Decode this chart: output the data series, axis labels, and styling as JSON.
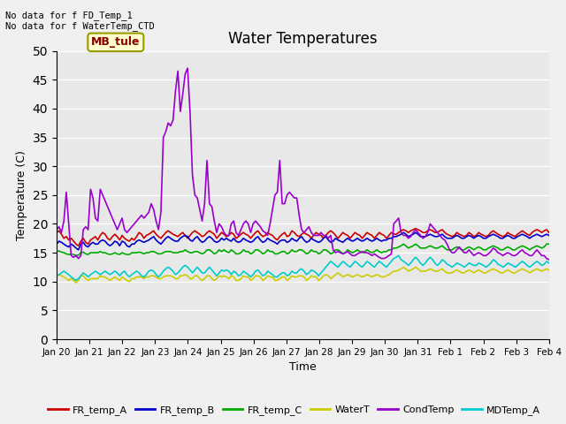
{
  "title": "Water Temperatures",
  "xlabel": "Time",
  "ylabel": "Temperature (C)",
  "ylim": [
    0,
    50
  ],
  "fig_bg": "#f0f0f0",
  "ax_bg": "#e8e8e8",
  "annotations": [
    "No data for f FD_Temp_1",
    "No data for f WaterTemp_CTD"
  ],
  "mb_tule_label": "MB_tule",
  "xtick_labels": [
    "Jan 20",
    "Jan 21",
    "Jan 22",
    "Jan 23",
    "Jan 24",
    "Jan 25",
    "Jan 26",
    "Jan 27",
    "Jan 28",
    "Jan 29",
    "Jan 30",
    "Jan 31",
    "Feb 1",
    "Feb 2",
    "Feb 3",
    "Feb 4"
  ],
  "series_names": [
    "FR_temp_A",
    "FR_temp_B",
    "FR_temp_C",
    "WaterT",
    "CondTemp",
    "MDTemp_A"
  ],
  "series_colors": [
    "#cc0000",
    "#0000cc",
    "#00aa00",
    "#cccc00",
    "#9900cc",
    "#00cccc"
  ],
  "series_lw": [
    1.2,
    1.2,
    1.2,
    1.2,
    1.2,
    1.2
  ],
  "FR_temp_A": [
    18.5,
    18.8,
    18.2,
    17.5,
    17.8,
    17.2,
    17.5,
    17.0,
    16.5,
    16.2,
    17.0,
    17.5,
    16.8,
    16.5,
    17.2,
    17.5,
    17.8,
    17.2,
    18.0,
    18.5,
    18.2,
    17.5,
    17.2,
    17.8,
    18.2,
    17.8,
    17.2,
    18.0,
    17.5,
    17.2,
    17.0,
    17.5,
    17.2,
    17.8,
    18.5,
    18.2,
    17.5,
    18.0,
    18.2,
    18.5,
    18.8,
    18.2,
    17.8,
    17.5,
    18.0,
    18.5,
    18.8,
    18.5,
    18.2,
    18.0,
    17.8,
    18.2,
    18.5,
    18.0,
    17.5,
    18.0,
    18.5,
    18.8,
    18.5,
    18.2,
    17.8,
    18.0,
    18.5,
    18.8,
    18.5,
    18.2,
    17.5,
    18.0,
    18.5,
    18.2,
    17.8,
    18.0,
    18.5,
    18.2,
    17.5,
    17.8,
    18.2,
    18.5,
    18.2,
    18.0,
    17.5,
    18.0,
    18.5,
    18.8,
    18.2,
    17.8,
    18.0,
    18.5,
    18.2,
    18.0,
    17.5,
    17.2,
    17.8,
    18.2,
    18.5,
    17.8,
    18.0,
    18.8,
    18.5,
    18.0,
    17.8,
    18.2,
    18.5,
    18.2,
    18.0,
    17.5,
    18.0,
    18.5,
    18.2,
    18.0,
    17.5,
    18.0,
    18.5,
    18.8,
    18.5,
    18.0,
    17.5,
    18.0,
    18.5,
    18.2,
    18.0,
    17.5,
    18.0,
    18.5,
    18.2,
    18.0,
    17.5,
    18.0,
    18.5,
    18.2,
    18.0,
    17.5,
    18.0,
    18.5,
    18.2,
    18.0,
    17.5,
    18.0,
    18.5,
    18.2,
    18.2,
    18.5,
    18.8,
    19.0,
    18.8,
    18.5,
    18.8,
    19.0,
    19.2,
    19.0,
    18.8,
    18.5,
    18.5,
    18.8,
    19.0,
    18.8,
    18.5,
    18.5,
    18.8,
    19.0,
    18.5,
    18.2,
    18.0,
    17.8,
    18.0,
    18.5,
    18.2,
    18.0,
    17.8,
    18.0,
    18.5,
    18.2,
    17.8,
    18.0,
    18.5,
    18.2,
    18.0,
    17.8,
    18.0,
    18.5,
    18.8,
    18.5,
    18.2,
    18.0,
    17.8,
    18.0,
    18.5,
    18.2,
    18.0,
    17.8,
    18.2,
    18.5,
    18.8,
    18.5,
    18.2,
    18.0,
    18.5,
    18.8,
    19.0,
    18.8,
    18.5,
    18.8,
    19.0,
    18.5
  ],
  "FR_temp_B": [
    16.5,
    17.0,
    16.8,
    16.5,
    16.2,
    16.0,
    16.5,
    16.2,
    15.8,
    15.5,
    16.5,
    16.8,
    16.2,
    16.0,
    16.5,
    16.8,
    16.5,
    16.5,
    17.0,
    17.2,
    17.0,
    16.5,
    16.2,
    16.5,
    17.0,
    16.8,
    16.2,
    17.0,
    16.8,
    16.2,
    16.0,
    16.5,
    16.5,
    17.0,
    17.2,
    17.0,
    16.8,
    17.0,
    17.2,
    17.5,
    17.8,
    17.2,
    16.8,
    16.5,
    17.0,
    17.5,
    17.8,
    17.5,
    17.2,
    17.0,
    17.0,
    17.5,
    17.8,
    18.0,
    17.8,
    17.2,
    17.0,
    17.5,
    17.8,
    17.2,
    16.8,
    17.0,
    17.5,
    17.8,
    17.5,
    17.0,
    16.8,
    17.0,
    17.5,
    17.2,
    17.5,
    17.2,
    17.0,
    17.5,
    17.0,
    16.8,
    17.0,
    17.5,
    17.2,
    17.0,
    16.8,
    17.0,
    17.5,
    17.8,
    17.2,
    16.8,
    17.0,
    17.5,
    17.2,
    17.0,
    16.8,
    16.5,
    17.0,
    17.2,
    17.2,
    16.8,
    17.0,
    17.5,
    17.2,
    17.0,
    17.5,
    17.8,
    17.2,
    16.8,
    17.0,
    17.5,
    17.2,
    17.0,
    16.8,
    17.0,
    17.5,
    17.8,
    17.2,
    16.8,
    17.0,
    17.5,
    17.2,
    17.0,
    16.8,
    17.2,
    17.5,
    17.2,
    17.0,
    17.2,
    17.5,
    17.2,
    17.0,
    17.2,
    17.5,
    17.2,
    17.0,
    17.2,
    17.5,
    17.2,
    17.0,
    17.2,
    17.2,
    17.5,
    17.5,
    17.8,
    17.8,
    18.0,
    18.2,
    18.5,
    18.2,
    17.8,
    18.0,
    18.2,
    18.5,
    18.2,
    17.8,
    17.8,
    17.8,
    18.0,
    18.2,
    18.0,
    17.8,
    17.8,
    18.0,
    18.2,
    17.8,
    17.5,
    17.5,
    17.5,
    17.8,
    18.0,
    17.8,
    17.5,
    17.5,
    17.8,
    18.0,
    17.8,
    17.5,
    17.8,
    18.0,
    17.8,
    17.5,
    17.5,
    17.8,
    18.0,
    18.2,
    18.0,
    17.8,
    17.5,
    17.5,
    17.8,
    18.0,
    17.8,
    17.5,
    17.5,
    17.8,
    18.0,
    18.2,
    18.0,
    17.8,
    17.5,
    17.8,
    18.0,
    18.2,
    18.0,
    17.8,
    18.0,
    18.2,
    18.0
  ],
  "FR_temp_C": [
    15.2,
    15.3,
    15.1,
    15.0,
    14.8,
    14.7,
    14.8,
    14.7,
    14.5,
    14.6,
    15.0,
    15.1,
    14.8,
    14.7,
    15.0,
    15.0,
    15.0,
    15.0,
    15.2,
    15.0,
    15.0,
    14.8,
    14.7,
    14.8,
    15.0,
    14.8,
    14.7,
    15.0,
    14.8,
    14.7,
    14.7,
    15.0,
    15.0,
    15.0,
    15.1,
    15.0,
    14.8,
    15.0,
    15.0,
    15.2,
    15.2,
    15.0,
    14.8,
    14.8,
    15.0,
    15.2,
    15.2,
    15.2,
    15.0,
    15.0,
    15.0,
    15.2,
    15.2,
    15.5,
    15.2,
    15.0,
    15.0,
    15.2,
    15.2,
    15.0,
    14.8,
    15.0,
    15.5,
    15.5,
    15.2,
    14.8,
    15.0,
    15.5,
    15.2,
    15.5,
    15.2,
    15.0,
    15.5,
    15.2,
    14.8,
    14.8,
    15.0,
    15.5,
    15.2,
    15.2,
    14.8,
    15.0,
    15.5,
    15.5,
    15.2,
    14.8,
    15.0,
    15.5,
    15.2,
    15.2,
    14.8,
    14.8,
    15.0,
    15.2,
    15.2,
    14.8,
    15.0,
    15.5,
    15.2,
    15.2,
    15.5,
    15.5,
    15.2,
    14.8,
    15.0,
    15.5,
    15.2,
    15.2,
    14.8,
    15.0,
    15.5,
    15.5,
    15.2,
    14.8,
    15.0,
    15.5,
    15.5,
    15.2,
    14.8,
    15.0,
    15.5,
    15.2,
    15.0,
    15.2,
    15.5,
    15.2,
    15.0,
    15.2,
    15.5,
    15.2,
    15.0,
    15.2,
    15.5,
    15.2,
    15.0,
    15.2,
    15.2,
    15.5,
    15.5,
    15.8,
    15.8,
    16.0,
    16.2,
    16.5,
    16.2,
    15.8,
    16.0,
    16.2,
    16.5,
    16.2,
    15.8,
    15.8,
    15.8,
    16.0,
    16.2,
    16.0,
    15.8,
    15.8,
    16.0,
    16.2,
    15.8,
    15.5,
    15.5,
    15.5,
    15.8,
    16.0,
    15.8,
    15.5,
    15.5,
    15.8,
    16.0,
    15.8,
    15.5,
    15.8,
    16.0,
    15.8,
    15.5,
    15.5,
    15.8,
    16.0,
    16.2,
    16.0,
    15.8,
    15.5,
    15.5,
    15.8,
    16.0,
    15.8,
    15.5,
    15.5,
    15.8,
    16.0,
    16.2,
    16.0,
    15.8,
    15.5,
    15.8,
    16.0,
    16.2,
    16.0,
    15.8,
    16.0,
    16.5,
    16.5
  ],
  "WaterT": [
    11.0,
    11.2,
    11.0,
    10.8,
    10.5,
    10.2,
    10.5,
    10.2,
    9.8,
    10.2,
    11.0,
    11.0,
    10.5,
    10.2,
    10.5,
    10.5,
    10.5,
    10.5,
    11.0,
    10.8,
    10.8,
    10.5,
    10.2,
    10.5,
    10.8,
    10.5,
    10.2,
    10.8,
    10.5,
    10.2,
    10.0,
    10.5,
    10.5,
    10.8,
    10.8,
    10.8,
    10.5,
    10.8,
    10.8,
    11.0,
    11.0,
    10.8,
    10.5,
    10.5,
    10.8,
    11.0,
    11.0,
    11.0,
    10.8,
    10.5,
    10.5,
    11.0,
    11.0,
    11.2,
    11.0,
    10.5,
    10.5,
    11.0,
    11.0,
    10.5,
    10.2,
    10.5,
    11.0,
    11.0,
    10.5,
    10.2,
    10.5,
    11.0,
    10.8,
    11.0,
    10.8,
    10.5,
    11.0,
    10.8,
    10.2,
    10.2,
    10.5,
    11.0,
    10.8,
    10.8,
    10.2,
    10.5,
    11.0,
    11.0,
    10.8,
    10.2,
    10.5,
    11.0,
    10.8,
    10.8,
    10.2,
    10.2,
    10.5,
    10.8,
    10.8,
    10.2,
    10.5,
    11.0,
    10.8,
    10.8,
    11.0,
    11.0,
    10.8,
    10.2,
    10.5,
    11.0,
    10.8,
    10.8,
    10.2,
    10.5,
    11.0,
    11.2,
    11.0,
    10.5,
    10.8,
    11.2,
    11.5,
    11.2,
    10.8,
    11.0,
    11.2,
    11.0,
    10.8,
    11.0,
    11.2,
    11.0,
    10.8,
    11.0,
    11.2,
    11.0,
    10.8,
    11.0,
    11.2,
    11.0,
    10.8,
    10.8,
    11.0,
    11.2,
    11.5,
    11.8,
    11.8,
    12.0,
    12.2,
    12.5,
    12.2,
    11.8,
    12.0,
    12.2,
    12.5,
    12.2,
    11.8,
    11.8,
    11.8,
    12.0,
    12.2,
    12.0,
    11.8,
    11.8,
    12.0,
    12.2,
    11.8,
    11.5,
    11.5,
    11.5,
    11.8,
    12.0,
    11.8,
    11.5,
    11.5,
    11.8,
    12.0,
    11.8,
    11.5,
    11.8,
    12.0,
    11.8,
    11.5,
    11.5,
    11.8,
    12.0,
    12.2,
    12.0,
    11.8,
    11.5,
    11.5,
    11.8,
    12.0,
    11.8,
    11.5,
    11.5,
    11.8,
    12.0,
    12.2,
    12.0,
    11.8,
    11.5,
    11.8,
    12.0,
    12.2,
    12.0,
    11.8,
    12.0,
    12.2,
    12.0
  ],
  "CondTemp": [
    19.0,
    19.5,
    18.5,
    20.5,
    25.5,
    20.0,
    14.5,
    14.2,
    14.5,
    14.0,
    14.5,
    19.0,
    19.5,
    19.0,
    26.0,
    24.5,
    21.0,
    20.5,
    26.0,
    25.0,
    24.0,
    23.0,
    22.0,
    21.0,
    20.0,
    19.0,
    20.0,
    21.0,
    19.0,
    18.5,
    19.0,
    19.5,
    20.0,
    20.5,
    21.0,
    21.5,
    21.0,
    21.5,
    22.0,
    23.5,
    22.5,
    20.5,
    19.0,
    22.0,
    35.0,
    36.0,
    37.5,
    37.0,
    38.0,
    43.0,
    46.5,
    39.5,
    42.5,
    46.0,
    47.0,
    39.5,
    28.5,
    25.0,
    24.5,
    22.5,
    20.5,
    23.5,
    31.0,
    23.5,
    23.0,
    20.5,
    18.5,
    20.0,
    19.5,
    18.5,
    18.0,
    18.0,
    20.0,
    20.5,
    18.5,
    18.0,
    19.0,
    20.0,
    20.5,
    20.0,
    18.5,
    20.0,
    20.5,
    20.0,
    19.5,
    18.8,
    18.5,
    18.0,
    20.0,
    22.5,
    25.0,
    25.5,
    31.0,
    23.5,
    23.5,
    25.0,
    25.5,
    25.0,
    24.5,
    24.5,
    21.5,
    19.0,
    18.5,
    19.0,
    19.5,
    18.5,
    18.0,
    18.0,
    18.0,
    18.5,
    18.0,
    18.0,
    17.5,
    18.0,
    15.5,
    15.0,
    15.2,
    15.0,
    14.8,
    15.0,
    15.2,
    14.8,
    14.5,
    14.5,
    14.8,
    15.0,
    15.2,
    15.0,
    15.0,
    14.8,
    14.5,
    14.8,
    14.5,
    14.2,
    14.0,
    14.0,
    14.2,
    14.5,
    14.8,
    20.0,
    20.5,
    21.0,
    18.5,
    18.0,
    18.0,
    17.5,
    17.8,
    18.5,
    19.0,
    18.5,
    18.0,
    17.5,
    17.8,
    18.5,
    20.0,
    19.5,
    19.0,
    18.5,
    18.0,
    17.5,
    17.2,
    16.5,
    15.5,
    15.0,
    15.0,
    15.5,
    16.0,
    15.5,
    15.0,
    15.0,
    15.5,
    15.0,
    14.5,
    14.8,
    15.0,
    14.8,
    14.5,
    14.5,
    14.8,
    15.2,
    15.8,
    15.5,
    15.0,
    14.8,
    14.5,
    14.8,
    15.0,
    14.8,
    14.5,
    14.5,
    14.8,
    15.2,
    15.5,
    15.0,
    14.8,
    14.5,
    14.5,
    15.0,
    15.5,
    15.0,
    14.5,
    14.5,
    14.0,
    13.8
  ],
  "MDTemp_A": [
    11.0,
    11.2,
    11.5,
    11.8,
    11.5,
    11.2,
    10.8,
    10.5,
    10.2,
    10.5,
    11.0,
    11.5,
    11.2,
    10.8,
    11.2,
    11.5,
    11.8,
    11.5,
    11.2,
    11.5,
    11.8,
    11.5,
    11.2,
    11.5,
    11.8,
    11.5,
    11.0,
    11.5,
    11.8,
    11.2,
    10.8,
    11.2,
    11.5,
    11.8,
    11.5,
    11.0,
    10.8,
    11.2,
    11.8,
    12.0,
    11.8,
    11.2,
    10.8,
    11.2,
    11.8,
    12.2,
    12.5,
    12.2,
    11.8,
    11.2,
    11.5,
    12.0,
    12.5,
    12.8,
    12.5,
    12.0,
    11.5,
    12.0,
    12.5,
    12.0,
    11.5,
    11.5,
    12.0,
    12.5,
    12.0,
    11.5,
    11.0,
    11.5,
    12.0,
    11.8,
    12.0,
    11.8,
    11.2,
    11.8,
    11.5,
    11.0,
    11.2,
    11.8,
    11.5,
    11.2,
    10.8,
    11.2,
    11.8,
    12.0,
    11.5,
    11.0,
    11.2,
    11.8,
    11.5,
    11.2,
    10.8,
    10.8,
    11.2,
    11.5,
    11.5,
    11.0,
    11.2,
    11.8,
    11.5,
    11.5,
    12.0,
    12.2,
    11.8,
    11.2,
    11.5,
    12.0,
    11.8,
    11.5,
    11.0,
    11.5,
    12.0,
    12.5,
    13.0,
    13.5,
    13.2,
    12.8,
    12.5,
    13.0,
    13.5,
    13.2,
    12.8,
    12.5,
    13.0,
    13.5,
    13.2,
    12.8,
    12.5,
    13.0,
    13.5,
    13.2,
    12.8,
    12.5,
    13.0,
    13.5,
    13.2,
    12.8,
    12.5,
    13.0,
    13.5,
    14.0,
    14.2,
    14.5,
    13.8,
    13.5,
    13.2,
    12.8,
    13.2,
    13.8,
    14.2,
    13.8,
    13.2,
    12.8,
    13.2,
    13.8,
    14.2,
    13.8,
    13.2,
    12.8,
    13.2,
    13.8,
    13.5,
    13.0,
    12.8,
    12.5,
    12.8,
    13.2,
    13.0,
    12.8,
    12.5,
    12.8,
    13.2,
    13.0,
    12.8,
    12.8,
    13.2,
    13.0,
    12.8,
    12.5,
    12.8,
    13.2,
    13.8,
    13.5,
    13.0,
    12.8,
    12.5,
    12.8,
    13.2,
    13.0,
    12.8,
    12.5,
    12.8,
    13.2,
    13.5,
    13.2,
    12.8,
    12.5,
    12.8,
    13.2,
    13.5,
    13.2,
    12.8,
    13.0,
    13.5,
    13.2
  ]
}
